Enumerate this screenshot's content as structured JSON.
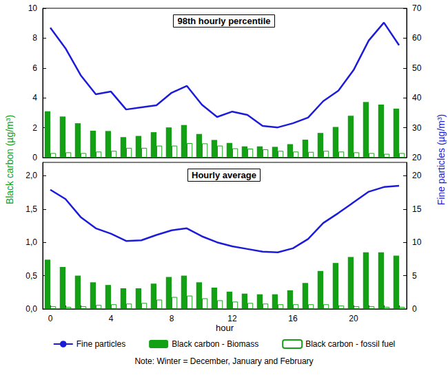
{
  "chart_data": [
    {
      "type": "bar",
      "title": "98th hourly percentile",
      "categories": [
        null,
        null,
        null,
        null,
        null,
        null,
        null,
        null,
        null,
        null,
        null,
        null,
        null,
        null,
        null,
        null,
        null,
        null,
        null,
        null,
        null,
        null,
        null,
        null
      ],
      "series": [
        {
          "name": "Fine particles",
          "type": "line",
          "axis": "y2",
          "color": "#1c1cd8",
          "line_style": "solid",
          "marker": "none",
          "values": [
            63.5,
            56.6,
            47.6,
            41.2,
            42.1,
            36.1,
            36.8,
            37.5,
            41.7,
            44.0,
            37.7,
            33.6,
            35.4,
            34.3,
            30.6,
            30.1,
            31.5,
            33.4,
            38.9,
            42.4,
            49.3,
            59.2,
            65.2,
            57.6
          ]
        },
        {
          "name": "Black carbon - Biomass",
          "type": "bar",
          "color": "#14a014",
          "marker": "filled",
          "values": [
            3.1,
            2.75,
            2.3,
            1.8,
            1.78,
            1.37,
            1.45,
            1.7,
            2.02,
            2.18,
            1.58,
            1.18,
            0.98,
            0.75,
            0.75,
            0.72,
            0.9,
            1.2,
            1.65,
            2.05,
            2.8,
            3.72,
            3.55,
            3.28
          ]
        },
        {
          "name": "Black carbon - fossil fuel",
          "type": "bar",
          "color": "#14a014",
          "marker": "hollow",
          "values": [
            0.3,
            0.35,
            0.3,
            0.4,
            0.45,
            0.65,
            0.65,
            0.8,
            0.8,
            0.97,
            0.95,
            0.8,
            0.62,
            0.6,
            0.55,
            0.45,
            0.4,
            0.38,
            0.45,
            0.4,
            0.35,
            0.3,
            0.25,
            0.3
          ]
        }
      ],
      "ylim": [
        0,
        10
      ],
      "yticks": [
        0,
        2,
        4,
        6,
        8,
        10
      ],
      "y2lim": [
        20,
        70
      ],
      "y2ticks": [
        20,
        30,
        40,
        50,
        60,
        70
      ],
      "grid": false
    },
    {
      "type": "bar",
      "title": "Hourly average",
      "xlabel": "hour",
      "categories": [
        "0",
        null,
        null,
        null,
        "4",
        null,
        null,
        null,
        "8",
        null,
        null,
        null,
        "12",
        null,
        null,
        null,
        "16",
        null,
        null,
        null,
        "20",
        null,
        null,
        null
      ],
      "series": [
        {
          "name": "Fine particles",
          "type": "line",
          "axis": "y2",
          "color": "#1c1cd8",
          "line_style": "solid",
          "marker": "none",
          "values": [
            17.9,
            16.5,
            13.8,
            12.1,
            11.3,
            10.2,
            10.3,
            11.1,
            11.8,
            12.1,
            10.9,
            10.0,
            9.4,
            9.0,
            8.6,
            8.5,
            9.1,
            10.5,
            12.9,
            14.4,
            16.0,
            17.6,
            18.3,
            18.5
          ]
        },
        {
          "name": "Black carbon - Biomass",
          "type": "bar",
          "color": "#14a014",
          "marker": "filled",
          "values": [
            0.74,
            0.63,
            0.5,
            0.4,
            0.36,
            0.31,
            0.31,
            0.38,
            0.48,
            0.5,
            0.4,
            0.32,
            0.26,
            0.23,
            0.22,
            0.22,
            0.28,
            0.39,
            0.57,
            0.69,
            0.78,
            0.85,
            0.85,
            0.8
          ]
        },
        {
          "name": "Black carbon - fossil fuel",
          "type": "bar",
          "color": "#14a014",
          "marker": "hollow",
          "values": [
            0.04,
            0.03,
            0.04,
            0.06,
            0.07,
            0.08,
            0.09,
            0.14,
            0.18,
            0.2,
            0.16,
            0.13,
            0.11,
            0.09,
            0.08,
            0.07,
            0.07,
            0.07,
            0.07,
            0.05,
            0.04,
            0.04,
            0.03,
            0.03
          ]
        }
      ],
      "ylim": [
        0,
        2.2
      ],
      "yticks": [
        {
          "value": 0,
          "label": "0,0"
        },
        {
          "value": 0.5,
          "label": "0,5"
        },
        {
          "value": 1,
          "label": "1,0"
        },
        {
          "value": 1.5,
          "label": "1,5"
        },
        {
          "value": 2,
          "label": "2,0"
        }
      ],
      "y2lim": [
        0,
        22
      ],
      "y2ticks": [
        0,
        5,
        10,
        15,
        20
      ],
      "grid": false,
      "legend": "bottom"
    }
  ],
  "ylabel": "Black carbon (µg/m³)",
  "y2label": "Fine particles (µg/m³)",
  "note": "Note: Winter = December, January and February"
}
